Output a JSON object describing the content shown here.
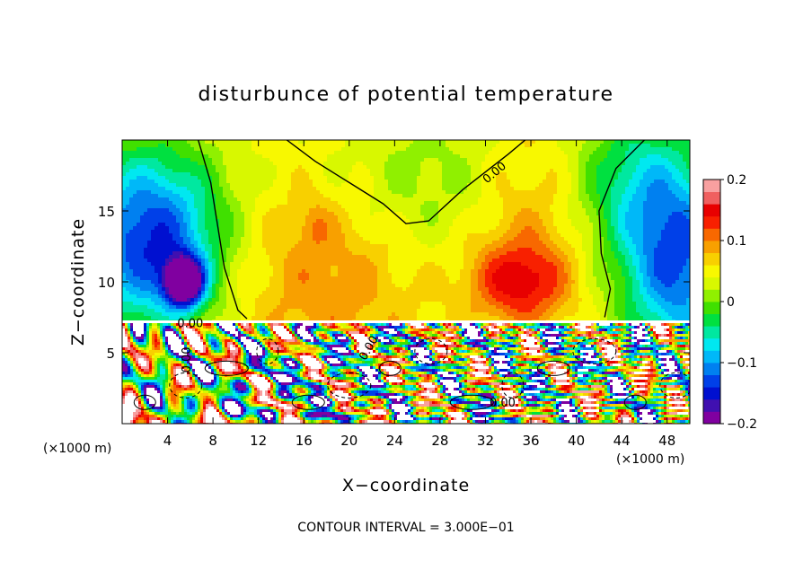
{
  "chart_data": {
    "type": "heatmap",
    "title": "disturbunce of potential temperature",
    "xlabel": "X−coordinate",
    "ylabel": "Z−coordinate",
    "x_unit_left": "(×1000 m)",
    "x_unit_right": "(×1000 m)",
    "footer": "CONTOUR INTERVAL = 3.000E−01",
    "xlim": [
      0,
      50
    ],
    "ylim": [
      0,
      20
    ],
    "x_ticks": [
      {
        "value": 4,
        "label": "4"
      },
      {
        "value": 8,
        "label": "8"
      },
      {
        "value": 12,
        "label": "12"
      },
      {
        "value": 16,
        "label": "16"
      },
      {
        "value": 20,
        "label": "20"
      },
      {
        "value": 24,
        "label": "24"
      },
      {
        "value": 28,
        "label": "28"
      },
      {
        "value": 32,
        "label": "32"
      },
      {
        "value": 36,
        "label": "36"
      },
      {
        "value": 40,
        "label": "40"
      },
      {
        "value": 44,
        "label": "44"
      },
      {
        "value": 48,
        "label": "48"
      }
    ],
    "y_ticks": [
      {
        "value": 5,
        "label": "5"
      },
      {
        "value": 10,
        "label": "10"
      },
      {
        "value": 15,
        "label": "15"
      }
    ],
    "colorbar": {
      "range": [
        -0.2,
        0.2
      ],
      "ticks": [
        {
          "value": 0.2,
          "label": "0.2"
        },
        {
          "value": 0.1,
          "label": "0.1"
        },
        {
          "value": 0,
          "label": "0"
        },
        {
          "value": -0.1,
          "label": "−0.1"
        },
        {
          "value": -0.2,
          "label": "−0.2"
        }
      ],
      "colors": [
        "#8000a0",
        "#4010b0",
        "#0010d0",
        "#0040e8",
        "#0080f0",
        "#00b8f8",
        "#00e8f0",
        "#00e8a0",
        "#00e040",
        "#40e000",
        "#90f000",
        "#d8f800",
        "#f8f800",
        "#f8d000",
        "#f8a000",
        "#f86800",
        "#f82000",
        "#e80000",
        "#f06060",
        "#f8a0a0"
      ]
    },
    "contour_labels": [
      "0.00",
      "0.00",
      "0.00",
      "0.00",
      "0.00"
    ]
  }
}
